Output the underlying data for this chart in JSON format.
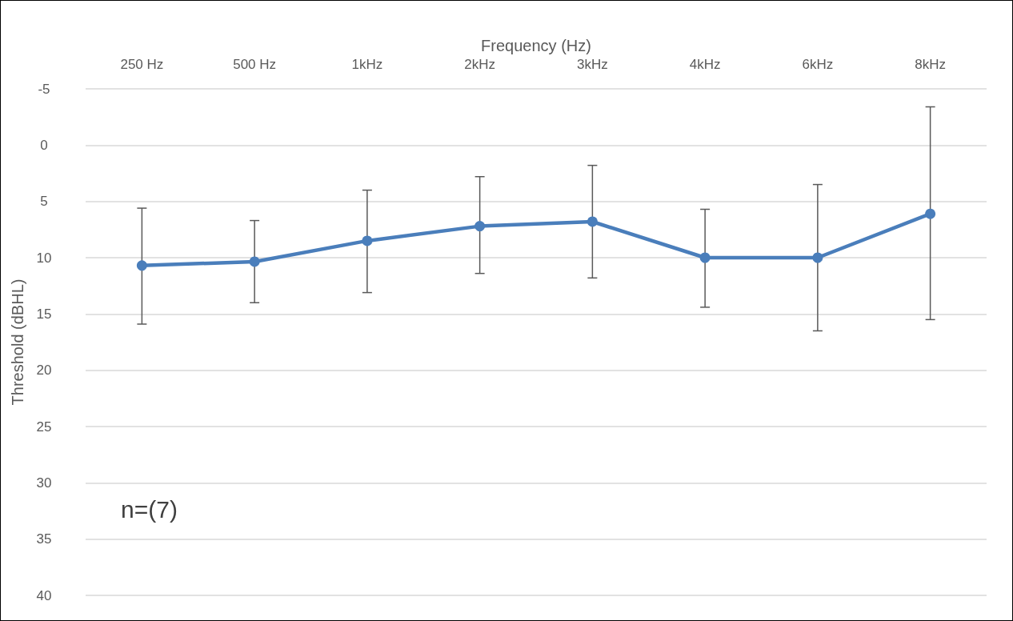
{
  "chart_data": {
    "type": "line",
    "xlabel": "Frequency (Hz)",
    "ylabel": "Threshold (dBHL)",
    "categories": [
      "250 Hz",
      "500 Hz",
      "1kHz",
      "2kHz",
      "3kHz",
      "4kHz",
      "6kHz",
      "8kHz"
    ],
    "series": [
      {
        "color": "#4a7ebb",
        "values": [
          10.7,
          10.35,
          8.5,
          7.2,
          6.8,
          10.0,
          10.0,
          6.1
        ],
        "errors": [
          [
            5.6,
            15.9
          ],
          [
            6.7,
            14.0
          ],
          [
            4.0,
            13.1
          ],
          [
            2.8,
            11.4
          ],
          [
            1.8,
            11.8
          ],
          [
            5.7,
            14.4
          ],
          [
            3.5,
            16.5
          ],
          [
            -3.4,
            15.5
          ]
        ]
      }
    ],
    "ylim": [
      40,
      -5
    ],
    "yticks": [
      -5,
      0,
      5,
      10,
      15,
      20,
      25,
      30,
      35,
      40
    ],
    "grid": "y",
    "marker": "circle",
    "line_style": "solid",
    "annotations": [
      "n=(7)"
    ]
  }
}
